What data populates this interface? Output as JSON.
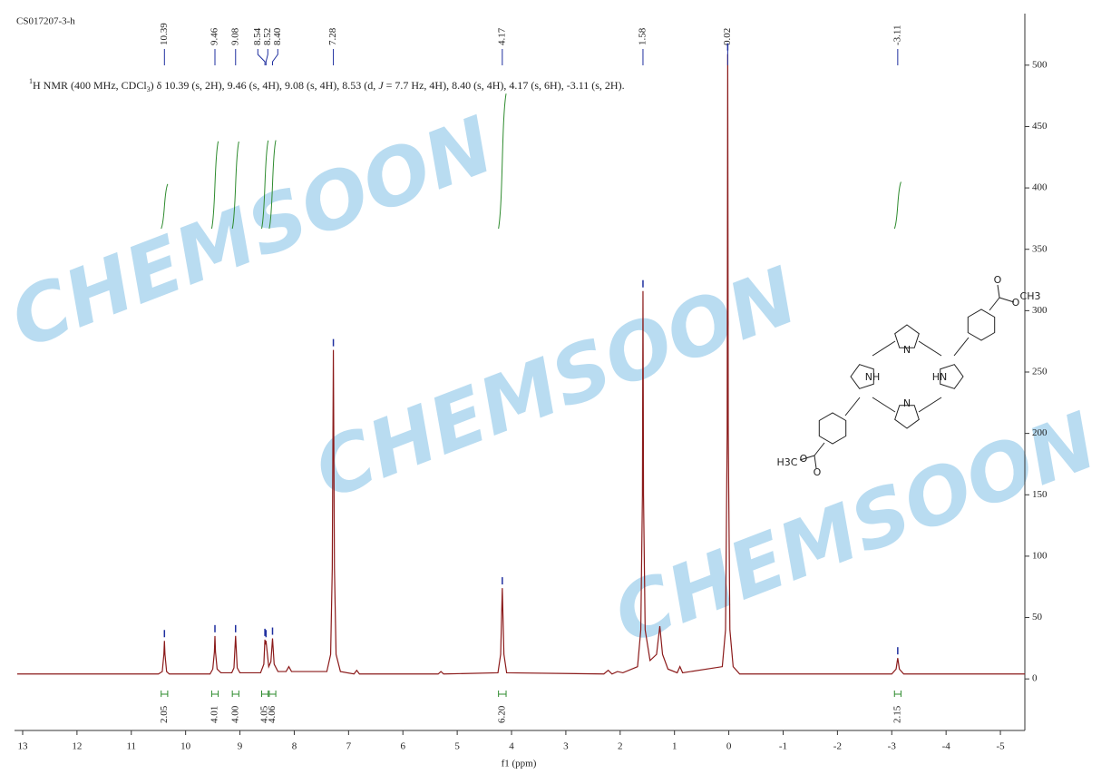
{
  "chart_data": {
    "type": "line",
    "title": "CS017207-3-h",
    "annotation_parts": [
      "1",
      "H NMR (400 MHz, CDCl",
      "3",
      ") δ 10.39 (s, 2H), 9.46 (s, 4H), 9.08 (s, 4H), 8.53 (d, ",
      "J",
      " = 7.7 Hz, 4H), 8.40 (s, 4H), 4.17 (s, 6H), -3.11 (s, 2H)."
    ],
    "x_label": "f1 (ppm)",
    "x": [
      13.1,
      11.0,
      10.5,
      10.43,
      10.4,
      10.39,
      10.38,
      10.35,
      10.3,
      9.55,
      9.5,
      9.47,
      9.46,
      9.45,
      9.42,
      9.35,
      9.15,
      9.11,
      9.08,
      9.05,
      9.0,
      8.62,
      8.56,
      8.54,
      8.53,
      8.52,
      8.47,
      8.43,
      8.4,
      8.37,
      8.3,
      8.15,
      8.1,
      8.05,
      7.4,
      7.33,
      7.3,
      7.28,
      7.26,
      7.23,
      7.15,
      6.9,
      6.85,
      6.8,
      5.35,
      5.3,
      5.25,
      4.25,
      4.2,
      4.17,
      4.14,
      4.09,
      2.3,
      2.22,
      2.15,
      2.05,
      1.95,
      1.68,
      1.62,
      1.59,
      1.58,
      1.57,
      1.54,
      1.45,
      1.33,
      1.27,
      1.22,
      1.12,
      0.95,
      0.9,
      0.85,
      0.12,
      0.06,
      0.03,
      0.02,
      0.01,
      -0.02,
      -0.08,
      -0.2,
      -3.0,
      -3.08,
      -3.11,
      -3.14,
      -3.22,
      -5.45
    ],
    "series": [
      {
        "name": "spectrum",
        "color": "#8b1a1a",
        "values": [
          4,
          4,
          4,
          6,
          20,
          31,
          20,
          6,
          4,
          4,
          8,
          22,
          35,
          22,
          8,
          5,
          5,
          9,
          35,
          9,
          5,
          5,
          12,
          32,
          28,
          31,
          10,
          14,
          33,
          12,
          6,
          6,
          10,
          6,
          6,
          20,
          90,
          268,
          90,
          20,
          6,
          4,
          7,
          4,
          4,
          6,
          4,
          5,
          20,
          74,
          20,
          5,
          4,
          7,
          4,
          6,
          5,
          10,
          40,
          150,
          316,
          150,
          40,
          15,
          20,
          43,
          20,
          8,
          5,
          10,
          5,
          10,
          40,
          200,
          509,
          200,
          40,
          10,
          4,
          4,
          8,
          17,
          8,
          4,
          4
        ]
      }
    ],
    "peaks": [
      10.39,
      9.46,
      9.08,
      8.54,
      8.52,
      {
        "value": 8.4,
        "label": "8.40"
      },
      7.28,
      4.17,
      1.58,
      0.02,
      -3.11
    ],
    "peak_color": "#1f2f9f",
    "integrals": [
      {
        "from": 10.45,
        "to": 10.33,
        "value": 2.05
      },
      {
        "from": 9.52,
        "to": 9.4,
        "value": 4.01
      },
      {
        "from": 9.14,
        "to": 9.02,
        "value": {
          "value": 4,
          "label": "4.00"
        }
      },
      {
        "from": 8.6,
        "to": 8.48,
        "value": 4.05
      },
      {
        "from": 8.46,
        "to": 8.34,
        "value": 4.06
      },
      {
        "from": 4.24,
        "to": 4.1,
        "value": {
          "value": 6.2,
          "label": "6.20"
        }
      },
      {
        "from": -3.05,
        "to": -3.17,
        "value": 2.15
      }
    ],
    "integral_color": "#2e8b2e",
    "xlim": [
      13.15,
      -5.45
    ],
    "xticks": [
      13,
      12,
      11,
      10,
      9,
      8,
      7,
      6,
      5,
      4,
      3,
      2,
      1,
      0,
      -1,
      -2,
      -3,
      -4,
      -5
    ],
    "ylim": [
      -42,
      542
    ],
    "yticks": [
      0,
      50,
      100,
      150,
      200,
      250,
      300,
      350,
      400,
      450,
      500
    ],
    "watermark": "CHEMSOON",
    "structure_labels": [
      "N",
      "NH",
      "HN",
      "N",
      "O",
      "O",
      "CH3",
      "H3C",
      "O",
      "O"
    ]
  }
}
